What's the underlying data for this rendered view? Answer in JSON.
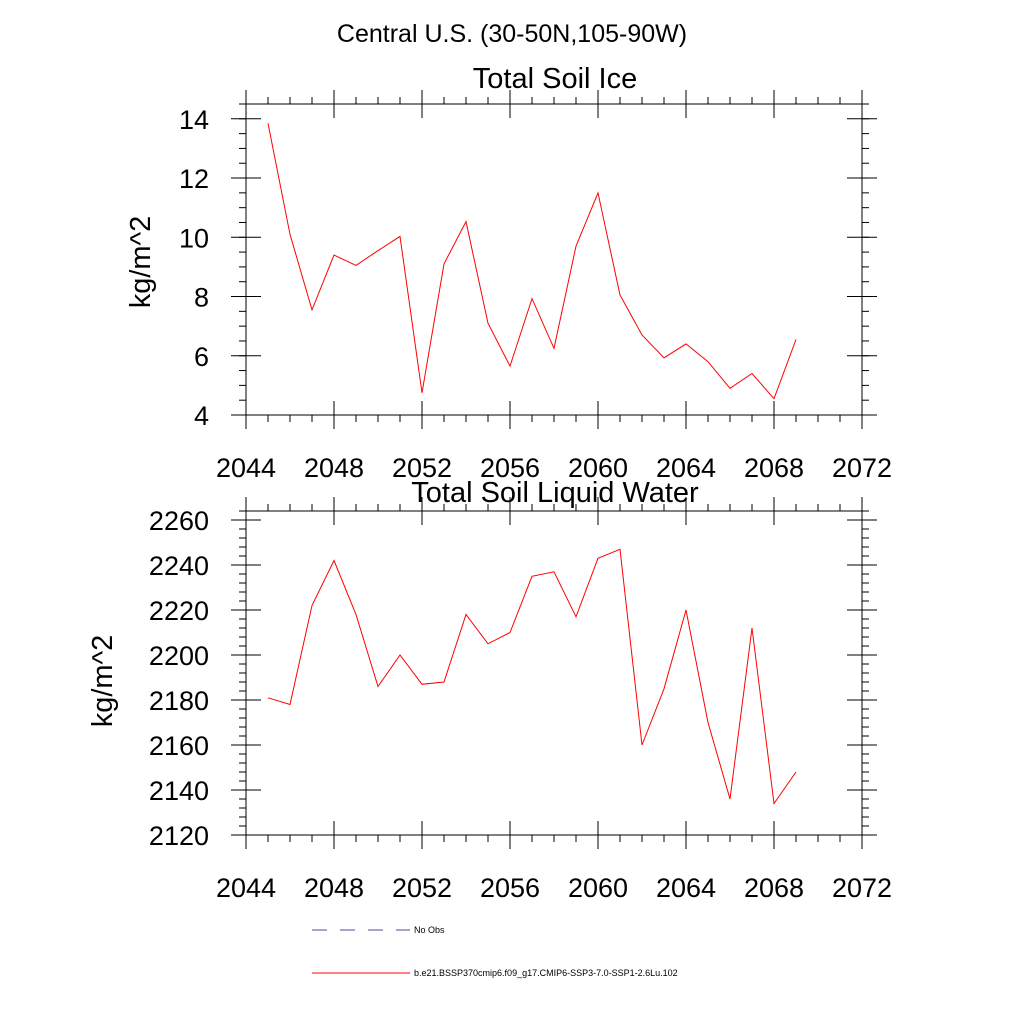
{
  "suptitle": "Central U.S. (30-50N,105-90W)",
  "colors": {
    "model": "#ff0000",
    "obs": "#4a4a9c",
    "axis": "#000000"
  },
  "legend": [
    {
      "label": "No Obs",
      "style": "dashed",
      "color": "#4a4a9c"
    },
    {
      "label": "b.e21.BSSP370cmip6.f09_g17.CMIP6-SSP3-7.0-SSP1-2.6Lu.102",
      "style": "solid",
      "color": "#ff0000"
    }
  ],
  "chart_data": [
    {
      "type": "line",
      "title": "Total Soil Ice",
      "xlabel": "",
      "ylabel": "kg/m^2",
      "xlim": [
        2044,
        2072
      ],
      "ylim": [
        4,
        14.5
      ],
      "xticks": [
        2044,
        2048,
        2052,
        2056,
        2060,
        2064,
        2068,
        2072
      ],
      "yticks": [
        4,
        6,
        8,
        10,
        12,
        14
      ],
      "x": [
        2045,
        2046,
        2047,
        2048,
        2049,
        2050,
        2051,
        2052,
        2053,
        2054,
        2055,
        2056,
        2057,
        2058,
        2059,
        2060,
        2061,
        2062,
        2063,
        2064,
        2065,
        2066,
        2067,
        2068,
        2069
      ],
      "series": [
        {
          "values": [
            13.85,
            10.1,
            7.55,
            9.4,
            9.05,
            9.55,
            10.03,
            4.75,
            9.1,
            10.53,
            7.1,
            5.65,
            7.93,
            6.25,
            9.7,
            11.5,
            8.05,
            6.7,
            5.93,
            6.4,
            5.8,
            4.9,
            5.4,
            4.55,
            6.55
          ]
        }
      ]
    },
    {
      "type": "line",
      "title": "Total Soil Liquid Water",
      "xlabel": "",
      "ylabel": "kg/m^2",
      "xlim": [
        2044,
        2072
      ],
      "ylim": [
        2120,
        2264
      ],
      "xticks": [
        2044,
        2048,
        2052,
        2056,
        2060,
        2064,
        2068,
        2072
      ],
      "yticks": [
        2120,
        2140,
        2160,
        2180,
        2200,
        2220,
        2240,
        2260
      ],
      "x": [
        2045,
        2046,
        2047,
        2048,
        2049,
        2050,
        2051,
        2052,
        2053,
        2054,
        2055,
        2056,
        2057,
        2058,
        2059,
        2060,
        2061,
        2062,
        2063,
        2064,
        2065,
        2066,
        2067,
        2068,
        2069
      ],
      "series": [
        {
          "values": [
            2181,
            2178,
            2222,
            2242,
            2218,
            2186,
            2200,
            2187,
            2188,
            2218,
            2205,
            2210,
            2235,
            2237,
            2217,
            2243,
            2247,
            2160,
            2185,
            2220,
            2170,
            2136,
            2212,
            2134,
            2148
          ]
        }
      ]
    }
  ]
}
